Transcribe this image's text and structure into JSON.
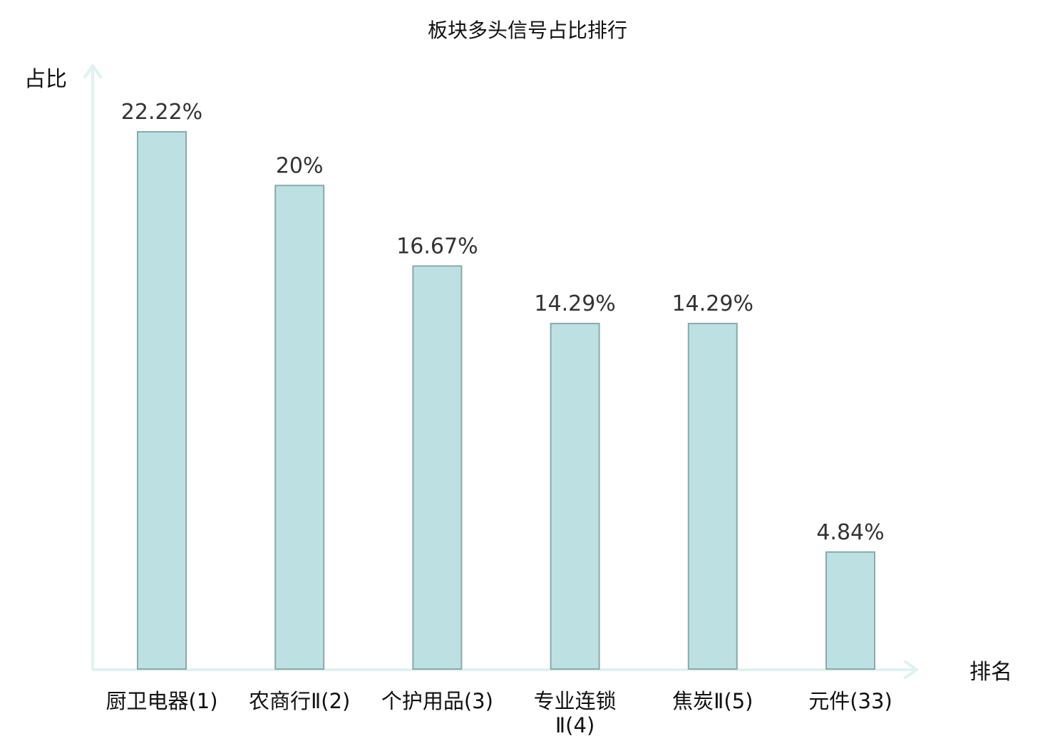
{
  "chart_data": {
    "type": "bar",
    "title": "板块多头信号占比排行",
    "ylabel": "占比",
    "xlabel": "排名",
    "categories": [
      "厨卫电器(1)",
      "农商行Ⅱ(2)",
      "个护用品(3)",
      "专业连锁Ⅱ(4)",
      "焦炭Ⅱ(5)",
      "元件(33)"
    ],
    "category_lines": [
      [
        "厨卫电器(1)"
      ],
      [
        "农商行Ⅱ(2)"
      ],
      [
        "个护用品(3)"
      ],
      [
        "专业连锁",
        "Ⅱ(4)"
      ],
      [
        "焦炭Ⅱ(5)"
      ],
      [
        "元件(33)"
      ]
    ],
    "values": [
      22.22,
      20,
      16.67,
      14.29,
      14.29,
      4.84
    ],
    "value_labels": [
      "22.22%",
      "20%",
      "16.67%",
      "14.29%",
      "14.29%",
      "4.84%"
    ],
    "highlight_index": 5,
    "ylim": [
      0,
      22.22
    ],
    "grid": false,
    "colors": {
      "bar_fill": "#bde0e3",
      "bar_stroke": "#8aa9ab",
      "axis": "#dff2ef",
      "label": "#111111",
      "value_label": "#333333",
      "highlight_label": "#e01818"
    }
  }
}
